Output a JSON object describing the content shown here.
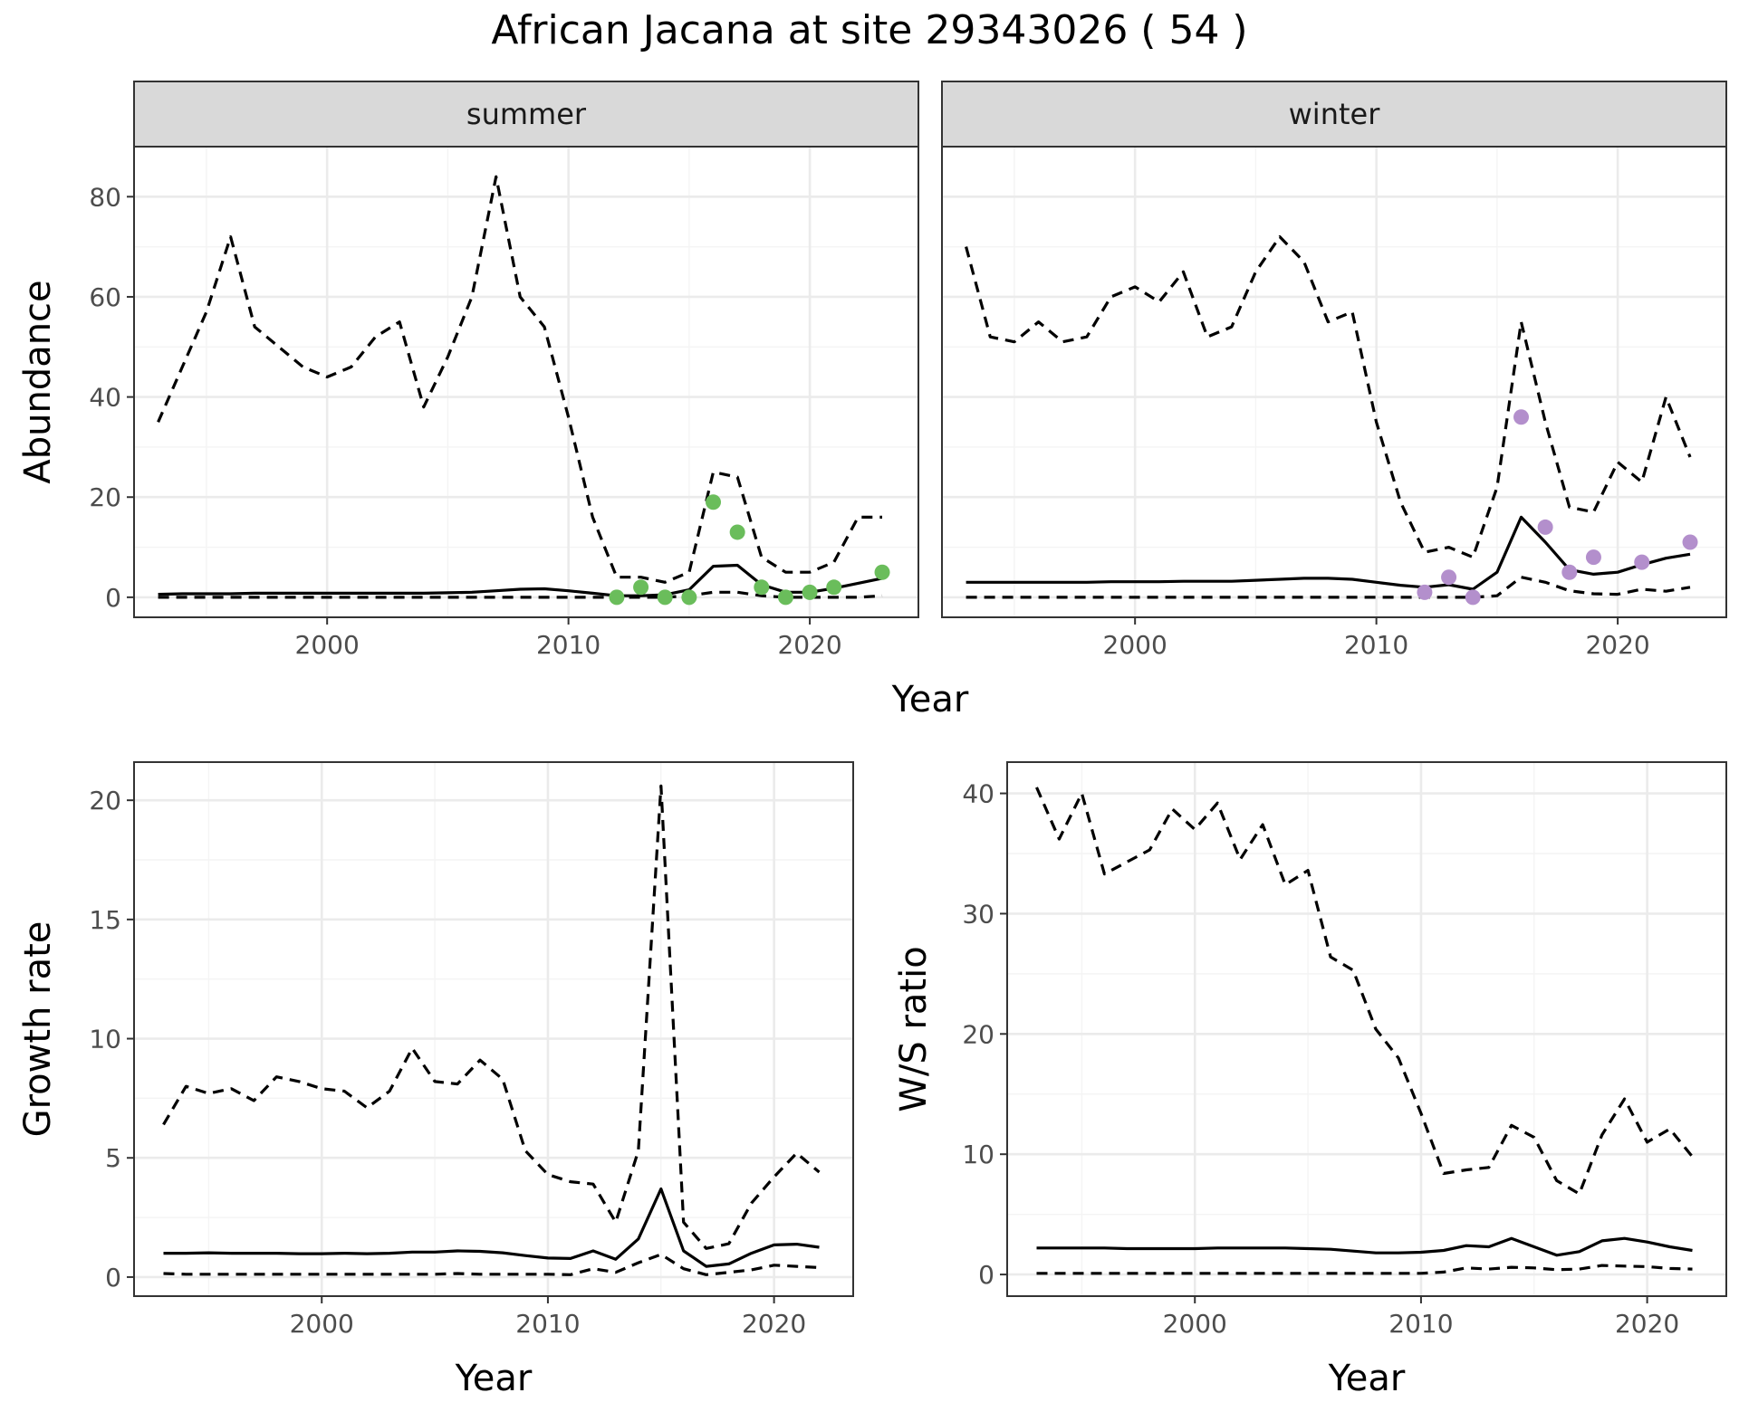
{
  "title": "African Jacana at site 29343026 ( 54 )",
  "colors": {
    "summer_points": "#6ABD5B",
    "winter_points": "#B38FCC",
    "line": "#000000",
    "strip_fill": "#D9D9D9",
    "grid_major": "#EBEBEB",
    "grid_minor": "#F4F4F4"
  },
  "chart_data": [
    {
      "type": "line",
      "panel": "summer",
      "strip_label": "summer",
      "xlabel": "Year",
      "ylabel": "Abundance",
      "xlim": [
        1992,
        2024.5
      ],
      "ylim": [
        -4,
        90
      ],
      "xticks": [
        2000,
        2010,
        2020
      ],
      "yticks": [
        0,
        20,
        40,
        60,
        80
      ],
      "grid": true,
      "x": [
        1993,
        1994,
        1995,
        1996,
        1997,
        1998,
        1999,
        2000,
        2001,
        2002,
        2003,
        2004,
        2005,
        2006,
        2007,
        2008,
        2009,
        2010,
        2011,
        2012,
        2013,
        2014,
        2015,
        2016,
        2017,
        2018,
        2019,
        2020,
        2021,
        2022,
        2023
      ],
      "series": [
        {
          "role": "estimate",
          "style": "solid",
          "values": [
            0.6,
            0.7,
            0.7,
            0.7,
            0.8,
            0.8,
            0.8,
            0.8,
            0.8,
            0.8,
            0.8,
            0.8,
            0.9,
            1.0,
            1.3,
            1.6,
            1.7,
            1.3,
            0.8,
            0.3,
            0.3,
            0.5,
            1.5,
            6.2,
            6.4,
            2.5,
            1.0,
            1.0,
            1.8,
            2.8,
            3.8
          ]
        },
        {
          "role": "upper",
          "style": "dashed",
          "values": [
            35,
            46,
            57,
            72,
            54,
            50,
            46,
            44,
            46,
            52,
            55,
            38,
            48,
            60,
            84,
            60,
            54,
            36,
            16,
            4,
            4,
            3,
            5,
            25,
            24,
            8,
            5,
            5,
            7,
            16,
            16
          ]
        },
        {
          "role": "lower",
          "style": "dashed",
          "values": [
            0,
            0,
            0,
            0,
            0,
            0,
            0,
            0,
            0,
            0,
            0,
            0,
            0,
            0,
            0,
            0,
            0,
            0,
            0,
            0,
            0,
            0,
            0.3,
            1,
            1,
            0.3,
            0,
            0,
            0,
            0,
            0.3
          ]
        }
      ],
      "points": {
        "x": [
          2012,
          2013,
          2014,
          2015,
          2016,
          2017,
          2018,
          2019,
          2020,
          2021,
          2023
        ],
        "y": [
          0,
          2,
          0,
          0,
          19,
          13,
          2,
          0,
          1,
          2,
          5
        ]
      }
    },
    {
      "type": "line",
      "panel": "winter",
      "strip_label": "winter",
      "xlabel": "Year",
      "ylabel": "Abundance",
      "xlim": [
        1992,
        2024.5
      ],
      "ylim": [
        -4,
        90
      ],
      "xticks": [
        2000,
        2010,
        2020
      ],
      "yticks": [
        0,
        20,
        40,
        60,
        80
      ],
      "grid": true,
      "x": [
        1993,
        1994,
        1995,
        1996,
        1997,
        1998,
        1999,
        2000,
        2001,
        2002,
        2003,
        2004,
        2005,
        2006,
        2007,
        2008,
        2009,
        2010,
        2011,
        2012,
        2013,
        2014,
        2015,
        2016,
        2017,
        2018,
        2019,
        2020,
        2021,
        2022,
        2023
      ],
      "series": [
        {
          "role": "estimate",
          "style": "solid",
          "values": [
            3.0,
            3.0,
            3.0,
            3.0,
            3.0,
            3.0,
            3.1,
            3.1,
            3.1,
            3.2,
            3.2,
            3.2,
            3.4,
            3.6,
            3.8,
            3.8,
            3.6,
            3.0,
            2.4,
            2.0,
            2.5,
            1.6,
            5.0,
            16,
            11,
            5.5,
            4.6,
            5.0,
            6.5,
            7.8,
            8.6
          ]
        },
        {
          "role": "upper",
          "style": "dashed",
          "values": [
            70,
            52,
            51,
            55,
            51,
            52,
            60,
            62,
            59,
            65,
            52,
            54,
            65,
            72,
            67,
            55,
            57,
            35,
            19,
            9,
            10,
            8,
            22,
            55,
            35,
            18,
            17,
            27,
            23,
            40,
            28
          ]
        },
        {
          "role": "lower",
          "style": "dashed",
          "values": [
            0,
            0,
            0,
            0,
            0,
            0,
            0,
            0,
            0,
            0,
            0,
            0,
            0,
            0,
            0,
            0,
            0,
            0,
            0,
            0,
            0,
            0,
            0.3,
            4.0,
            3.0,
            1.3,
            0.7,
            0.6,
            1.6,
            1.2,
            2.0
          ]
        }
      ],
      "points": {
        "x": [
          2012,
          2013,
          2014,
          2016,
          2017,
          2018,
          2019,
          2021,
          2023
        ],
        "y": [
          1,
          4,
          0,
          36,
          14,
          5,
          8,
          7,
          11
        ]
      }
    },
    {
      "type": "line",
      "panel": "growth",
      "xlabel": "Year",
      "ylabel": "Growth rate",
      "xlim": [
        1991.7,
        2023.5
      ],
      "ylim": [
        -0.8,
        21.6
      ],
      "xticks": [
        2000,
        2010,
        2020
      ],
      "yticks": [
        0,
        5,
        10,
        15,
        20
      ],
      "grid": true,
      "x": [
        1993,
        1994,
        1995,
        1996,
        1997,
        1998,
        1999,
        2000,
        2001,
        2002,
        2003,
        2004,
        2005,
        2006,
        2007,
        2008,
        2009,
        2010,
        2011,
        2012,
        2013,
        2014,
        2015,
        2016,
        2017,
        2018,
        2019,
        2020,
        2021,
        2022
      ],
      "series": [
        {
          "role": "estimate",
          "style": "solid",
          "values": [
            1.0,
            1.0,
            1.02,
            1.0,
            1.0,
            1.0,
            0.98,
            0.98,
            1.0,
            0.98,
            1.0,
            1.05,
            1.05,
            1.1,
            1.08,
            1.02,
            0.9,
            0.8,
            0.78,
            1.1,
            0.75,
            1.6,
            3.7,
            1.1,
            0.45,
            0.55,
            1.0,
            1.35,
            1.38,
            1.25
          ]
        },
        {
          "role": "upper",
          "style": "dashed",
          "values": [
            6.4,
            8.0,
            7.7,
            7.9,
            7.4,
            8.4,
            8.2,
            7.9,
            7.8,
            7.1,
            7.8,
            9.6,
            8.2,
            8.1,
            9.1,
            8.3,
            5.3,
            4.3,
            4.0,
            3.9,
            2.3,
            5.3,
            20.6,
            2.3,
            1.2,
            1.4,
            3.1,
            4.2,
            5.2,
            4.4
          ]
        },
        {
          "role": "lower",
          "style": "dashed",
          "values": [
            0.15,
            0.12,
            0.12,
            0.12,
            0.12,
            0.12,
            0.12,
            0.12,
            0.12,
            0.12,
            0.12,
            0.12,
            0.12,
            0.15,
            0.12,
            0.12,
            0.12,
            0.12,
            0.1,
            0.35,
            0.2,
            0.6,
            0.95,
            0.35,
            0.1,
            0.2,
            0.3,
            0.5,
            0.45,
            0.4
          ]
        }
      ]
    },
    {
      "type": "line",
      "panel": "ws_ratio",
      "xlabel": "Year",
      "ylabel": "W/S ratio",
      "xlim": [
        1991.7,
        2023.5
      ],
      "ylim": [
        -1.8,
        42.6
      ],
      "xticks": [
        2000,
        2010,
        2020
      ],
      "yticks": [
        0,
        10,
        20,
        30,
        40
      ],
      "grid": true,
      "x": [
        1993,
        1994,
        1995,
        1996,
        1997,
        1998,
        1999,
        2000,
        2001,
        2002,
        2003,
        2004,
        2005,
        2006,
        2007,
        2008,
        2009,
        2010,
        2011,
        2012,
        2013,
        2014,
        2015,
        2016,
        2017,
        2018,
        2019,
        2020,
        2021,
        2022
      ],
      "series": [
        {
          "role": "estimate",
          "style": "solid",
          "values": [
            2.2,
            2.2,
            2.2,
            2.2,
            2.15,
            2.15,
            2.15,
            2.15,
            2.2,
            2.2,
            2.2,
            2.2,
            2.15,
            2.1,
            1.95,
            1.8,
            1.8,
            1.85,
            2.0,
            2.4,
            2.3,
            3.0,
            2.3,
            1.6,
            1.9,
            2.8,
            3.0,
            2.7,
            2.3,
            2.0
          ]
        },
        {
          "role": "upper",
          "style": "dashed",
          "values": [
            40.5,
            36.2,
            40.0,
            33.3,
            34.3,
            35.3,
            38.7,
            37.0,
            39.2,
            34.5,
            37.4,
            32.4,
            33.6,
            26.4,
            25.3,
            20.4,
            18.0,
            13.4,
            8.4,
            8.7,
            8.9,
            12.4,
            11.4,
            7.8,
            6.7,
            11.6,
            14.6,
            11.0,
            12.1,
            9.8
          ]
        },
        {
          "role": "lower",
          "style": "dashed",
          "values": [
            0.1,
            0.1,
            0.1,
            0.1,
            0.1,
            0.1,
            0.1,
            0.1,
            0.1,
            0.1,
            0.1,
            0.1,
            0.1,
            0.1,
            0.1,
            0.1,
            0.1,
            0.1,
            0.2,
            0.55,
            0.45,
            0.6,
            0.55,
            0.4,
            0.45,
            0.75,
            0.7,
            0.65,
            0.5,
            0.45
          ]
        }
      ]
    }
  ]
}
